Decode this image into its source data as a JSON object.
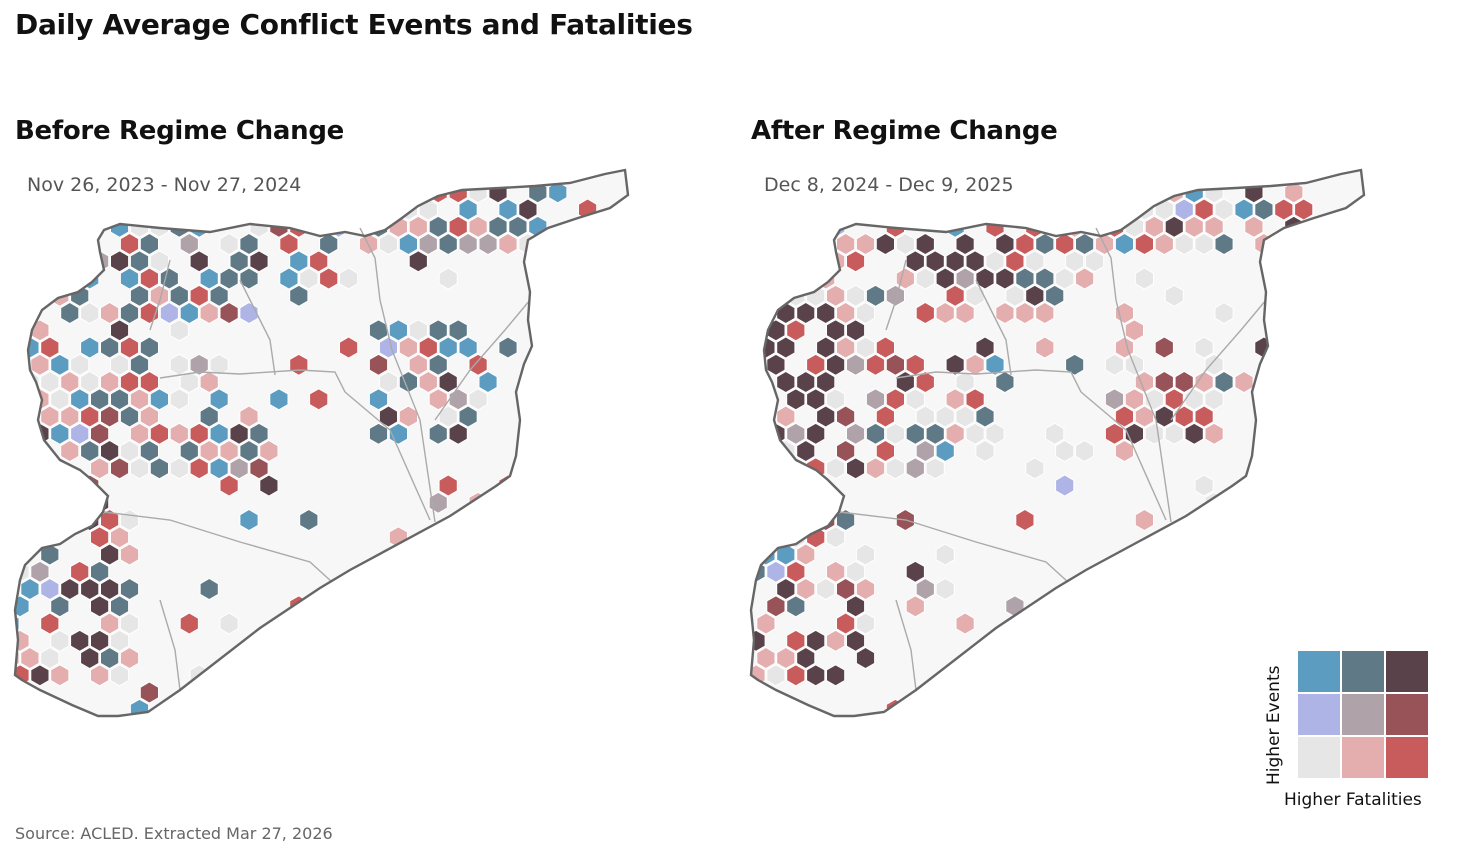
{
  "title": "Daily Average Conflict Events and Fatalities",
  "panels": [
    {
      "title": "Before Regime Change",
      "subtitle": "Nov 26, 2023 - Nov 27, 2024"
    },
    {
      "title": "After Regime Change",
      "subtitle": "Dec 8, 2024 - Dec 9, 2025"
    }
  ],
  "legend": {
    "y_label": "Higher Events",
    "x_label": "Higher Fatalities",
    "rows": [
      [
        "#5b9cc0",
        "#5f7a86",
        "#59424a"
      ],
      [
        "#aeb5e6",
        "#b0a2a9",
        "#975357"
      ],
      [
        "#e6e6e6",
        "#e4adae",
        "#c85b5c"
      ]
    ]
  },
  "colors": {
    "c1": "#5b9cc0",
    "c2": "#5f7a86",
    "c3": "#59424a",
    "c4": "#aeb5e6",
    "c5": "#b0a2a9",
    "c6": "#975357",
    "c7": "#e6e6e6",
    "c8": "#e4adae",
    "c9": "#c85b5c"
  },
  "source": "Source: ACLED. Extracted Mar 27, 2026"
}
